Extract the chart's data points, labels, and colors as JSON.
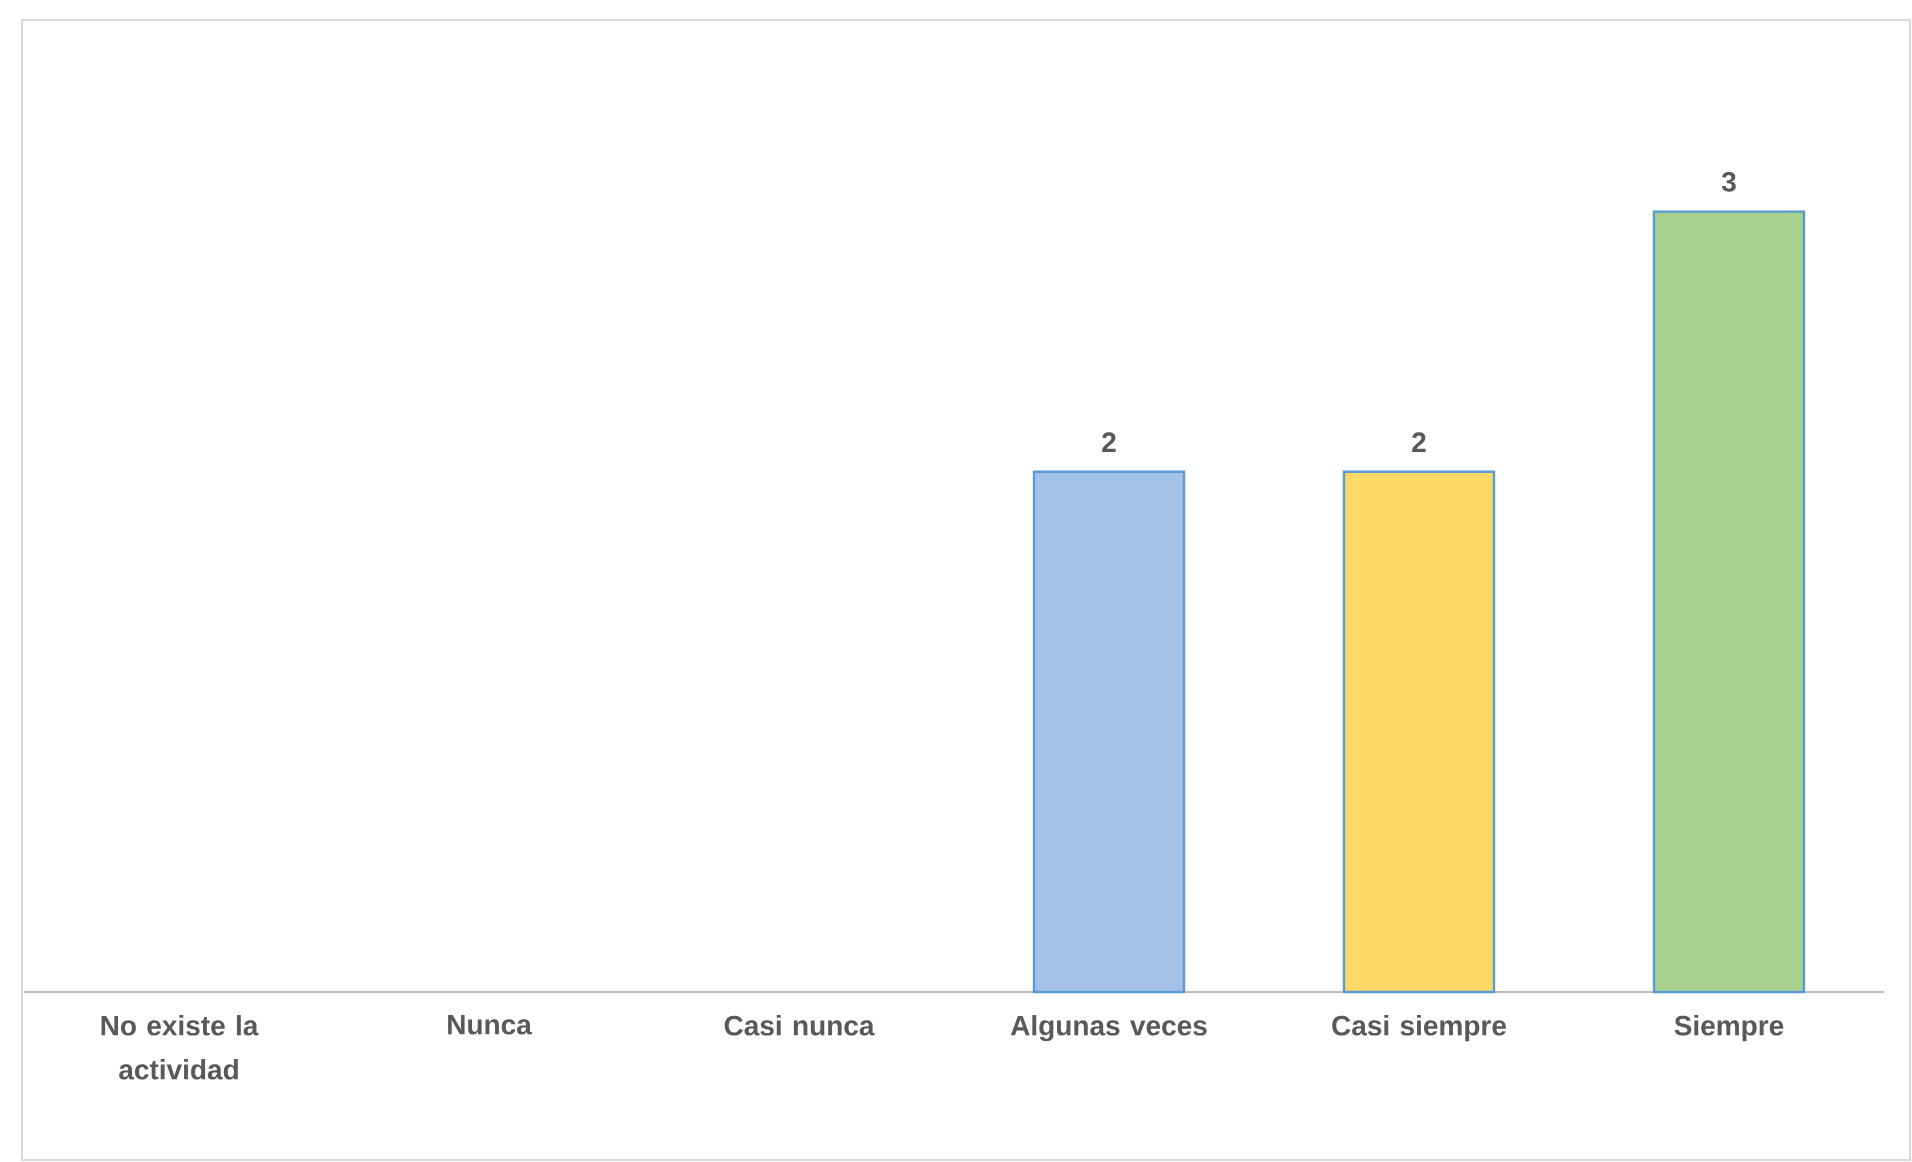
{
  "chart_data": {
    "type": "bar",
    "categories": [
      "No existe la actividad",
      "Nunca",
      "Casi nunca",
      "Algunas veces",
      "Casi siempre",
      "Siempre"
    ],
    "values": [
      0,
      0,
      0,
      2,
      2,
      3
    ],
    "colors": [
      "#a4c2e8",
      "#a4c2e8",
      "#a4c2e8",
      "#a4c2e8",
      "#ffd966",
      "#a9d18e"
    ],
    "value_labels": [
      null,
      null,
      null,
      "2",
      "2",
      "3"
    ]
  }
}
